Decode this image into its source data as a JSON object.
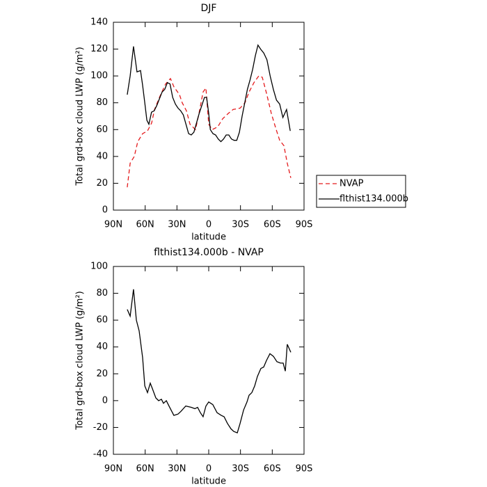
{
  "chart_data": [
    {
      "type": "line",
      "title": "DJF",
      "xlabel": "latitude",
      "ylabel": "Total grd-box cloud LWP (g/m²)",
      "xlim": [
        90,
        -90
      ],
      "xticks": [
        {
          "value": 90,
          "label": "90N"
        },
        {
          "value": 60,
          "label": "60N"
        },
        {
          "value": 30,
          "label": "30N"
        },
        0,
        {
          "value": -30,
          "label": "30S"
        },
        {
          "value": -60,
          "label": "60S"
        },
        {
          "value": -90,
          "label": "90S"
        }
      ],
      "ylim": [
        0,
        140
      ],
      "yticks": [
        0,
        20,
        40,
        60,
        80,
        100,
        120,
        140
      ],
      "legend": "right",
      "series": [
        {
          "name": "NVAP",
          "color": "#e41a1c",
          "dashed": true,
          "x": [
            76.9,
            74.2,
            70.3,
            67,
            62.4,
            57.8,
            53.9,
            51.2,
            46,
            40.7,
            36.1,
            32.9,
            27.6,
            25,
            21,
            17.7,
            12.5,
            9.2,
            5.3,
            2.6,
            0,
            -3.3,
            -8.5,
            -13.1,
            -18.4,
            -23,
            -29.6,
            -34.2,
            -38.1,
            -42.7,
            -47.3,
            -50.6,
            -54.6,
            -59.1,
            -63.7,
            -67,
            -71,
            -74.2,
            -77.5
          ],
          "values": [
            17,
            35,
            40,
            51,
            57,
            59,
            65,
            75,
            85,
            94,
            98,
            92,
            86,
            80,
            74,
            64,
            60,
            72,
            88,
            91,
            64,
            60,
            62,
            68,
            72,
            75,
            76,
            80,
            88,
            95,
            100,
            99,
            87,
            72,
            60,
            52,
            48,
            35,
            24
          ]
        },
        {
          "name": "flthist134.000b",
          "color": "#000000",
          "dashed": false,
          "x": [
            76.9,
            74.2,
            71,
            67.7,
            64.4,
            62.4,
            60.4,
            58.4,
            56.5,
            54,
            51.5,
            49,
            46.5,
            44,
            41.5,
            39,
            36.5,
            34,
            31.5,
            29,
            26.5,
            24,
            21.5,
            19,
            16.5,
            14,
            11.5,
            9,
            6.5,
            4,
            2,
            0,
            -1.5,
            -4,
            -6.5,
            -9,
            -11.5,
            -14,
            -16.5,
            -19,
            -21.5,
            -24,
            -26.5,
            -29,
            -31.5,
            -34,
            -36.5,
            -39,
            -41.5,
            -44,
            -46.5,
            -49,
            -52,
            -55,
            -58,
            -61,
            -64,
            -67,
            -70,
            -73.5,
            -77
          ],
          "values": [
            86,
            100,
            122,
            103,
            104,
            93,
            80,
            67,
            64,
            73,
            74,
            78,
            83,
            88,
            90,
            95,
            94,
            84,
            79,
            76,
            74,
            71,
            64,
            57,
            56,
            58,
            65,
            72,
            78,
            84,
            84,
            72,
            60,
            57,
            56,
            53,
            51,
            53,
            56,
            56,
            53,
            52,
            52,
            58,
            70,
            80,
            90,
            97,
            105,
            115,
            123,
            120,
            117,
            112,
            100,
            90,
            82,
            79,
            69,
            75,
            59
          ]
        }
      ]
    },
    {
      "type": "line",
      "title": "flthist134.000b - NVAP",
      "xlabel": "latitude",
      "ylabel": "Total grd-box cloud LWP (g/m²)",
      "xlim": [
        90,
        -90
      ],
      "xticks": [
        {
          "value": 90,
          "label": "90N"
        },
        {
          "value": 60,
          "label": "60N"
        },
        {
          "value": 30,
          "label": "30N"
        },
        0,
        {
          "value": -30,
          "label": "30S"
        },
        {
          "value": -60,
          "label": "60S"
        },
        {
          "value": -90,
          "label": "90S"
        }
      ],
      "ylim": [
        -40,
        100
      ],
      "yticks": [
        -40,
        -20,
        0,
        20,
        40,
        60,
        80,
        100
      ],
      "series": [
        {
          "color": "#000000",
          "dashed": false,
          "x": [
            76.9,
            74.2,
            71,
            68.3,
            65.7,
            62.4,
            60.4,
            57.8,
            55.2,
            53.2,
            49.9,
            47.3,
            44.7,
            42.7,
            40,
            37.5,
            32.9,
            28.9,
            26.3,
            21.7,
            16.4,
            13.1,
            10.5,
            7.9,
            5.3,
            2.6,
            0,
            -3.9,
            -7.9,
            -11.8,
            -14.5,
            -17.7,
            -21,
            -23.7,
            -27,
            -29.6,
            -32.9,
            -36.1,
            -38.1,
            -40.7,
            -43.4,
            -46,
            -49.3,
            -51.9,
            -54.6,
            -57.8,
            -61.1,
            -64.4,
            -67.7,
            -70.3,
            -72.3,
            -74.2,
            -77.5
          ],
          "values": [
            68,
            63,
            83,
            60,
            52,
            32,
            11,
            6,
            13,
            9,
            2,
            0,
            1,
            -2,
            0,
            -4,
            -11,
            -10,
            -8,
            -4,
            -5,
            -6,
            -5,
            -9,
            -12,
            -4,
            -1,
            -3,
            -9,
            -11,
            -12,
            -17,
            -21,
            -23,
            -24,
            -17,
            -7,
            -1,
            4,
            6,
            11,
            18,
            24,
            25,
            30,
            35,
            33,
            29,
            28,
            28,
            22,
            42,
            36
          ]
        }
      ]
    }
  ]
}
